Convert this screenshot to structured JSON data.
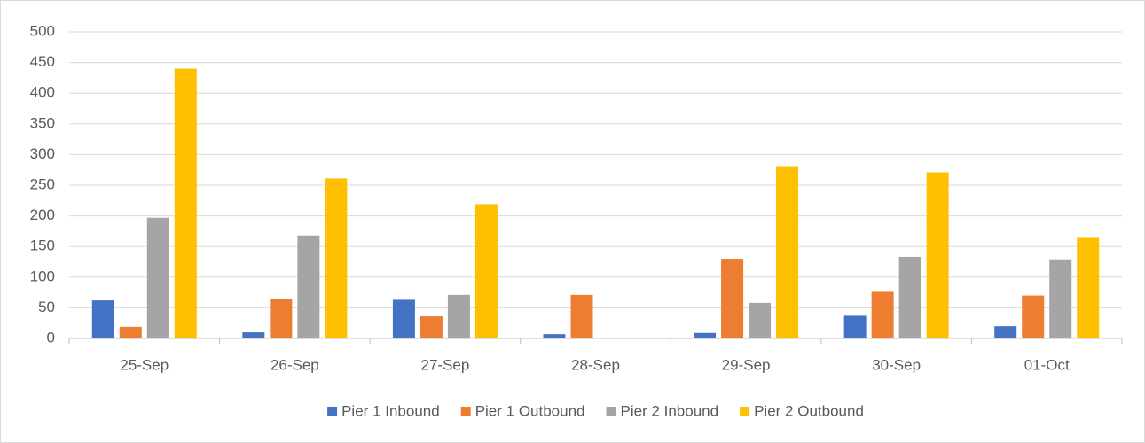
{
  "chart_data": {
    "type": "bar",
    "categories": [
      "25-Sep",
      "26-Sep",
      "27-Sep",
      "28-Sep",
      "29-Sep",
      "30-Sep",
      "01-Oct"
    ],
    "series": [
      {
        "name": "Pier 1 Inbound",
        "color": "#4472c4",
        "values": [
          62,
          10,
          63,
          7,
          9,
          37,
          20
        ]
      },
      {
        "name": "Pier 1 Outbound",
        "color": "#ed7d31",
        "values": [
          19,
          64,
          36,
          71,
          130,
          76,
          70
        ]
      },
      {
        "name": "Pier 2 Inbound",
        "color": "#a5a5a5",
        "values": [
          197,
          168,
          71,
          0,
          58,
          133,
          129
        ]
      },
      {
        "name": "Pier 2 Outbound",
        "color": "#ffc000",
        "values": [
          440,
          261,
          219,
          0,
          281,
          271,
          164
        ]
      }
    ],
    "ylim": [
      0,
      500
    ],
    "yticks": [
      0,
      50,
      100,
      150,
      200,
      250,
      300,
      350,
      400,
      450,
      500
    ],
    "grid": true,
    "legend": "bottom"
  }
}
